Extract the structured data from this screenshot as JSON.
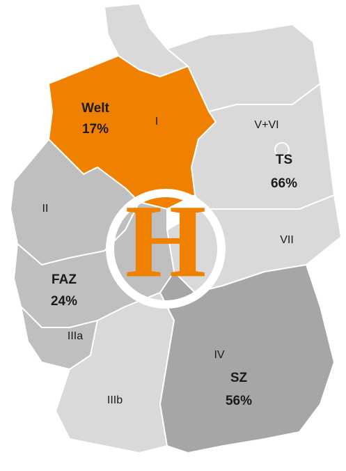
{
  "map": {
    "regions": [
      "I",
      "II",
      "IIIa",
      "IIIb",
      "IV",
      "V+VI",
      "VII"
    ],
    "newspapers": [
      {
        "name": "Welt",
        "share": "17%"
      },
      {
        "name": "FAZ",
        "share": "24%"
      },
      {
        "name": "TS",
        "share": "66%"
      },
      {
        "name": "SZ",
        "share": "56%"
      }
    ],
    "logo": "H"
  }
}
